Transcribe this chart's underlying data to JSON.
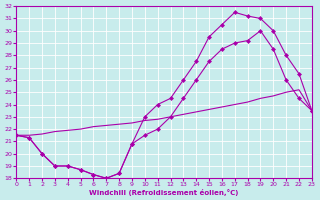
{
  "xlabel": "Windchill (Refroidissement éolien,°C)",
  "bg_color": "#c8ecec",
  "line_color": "#aa00aa",
  "grid_color": "#ffffff",
  "xmin": 0,
  "xmax": 23,
  "ymin": 18,
  "ymax": 32,
  "xticks": [
    0,
    1,
    2,
    3,
    4,
    5,
    6,
    7,
    8,
    9,
    10,
    11,
    12,
    13,
    14,
    15,
    16,
    17,
    18,
    19,
    20,
    21,
    22,
    23
  ],
  "yticks": [
    18,
    19,
    20,
    21,
    22,
    23,
    24,
    25,
    26,
    27,
    28,
    29,
    30,
    31,
    32
  ],
  "line1_x": [
    0,
    1,
    2,
    3,
    4,
    5,
    6,
    7,
    8,
    9,
    10,
    11,
    12,
    13,
    14,
    15,
    16,
    17,
    18,
    19,
    20,
    21,
    22,
    23
  ],
  "line1_y": [
    21.5,
    21.3,
    20.0,
    19.0,
    19.0,
    18.7,
    18.3,
    18.0,
    18.4,
    20.8,
    23.0,
    24.0,
    24.5,
    26.0,
    27.5,
    29.5,
    30.5,
    31.5,
    31.2,
    31.0,
    30.0,
    28.0,
    26.5,
    23.5
  ],
  "line2_x": [
    0,
    1,
    2,
    3,
    4,
    5,
    6,
    7,
    8,
    9,
    10,
    11,
    12,
    13,
    14,
    15,
    16,
    17,
    18,
    19,
    20,
    21,
    22,
    23
  ],
  "line2_y": [
    21.5,
    21.3,
    20.0,
    19.0,
    19.0,
    18.7,
    18.3,
    18.0,
    18.4,
    20.8,
    21.5,
    22.0,
    23.0,
    24.5,
    26.0,
    27.5,
    28.5,
    29.0,
    29.2,
    30.0,
    28.5,
    26.0,
    24.5,
    23.5
  ],
  "line3_x": [
    0,
    1,
    2,
    3,
    4,
    5,
    6,
    7,
    8,
    9,
    10,
    11,
    12,
    13,
    14,
    15,
    16,
    17,
    18,
    19,
    20,
    21,
    22,
    23
  ],
  "line3_y": [
    21.5,
    21.5,
    21.6,
    21.8,
    21.9,
    22.0,
    22.2,
    22.3,
    22.4,
    22.5,
    22.7,
    22.8,
    23.0,
    23.2,
    23.4,
    23.6,
    23.8,
    24.0,
    24.2,
    24.5,
    24.7,
    25.0,
    25.2,
    23.5
  ]
}
